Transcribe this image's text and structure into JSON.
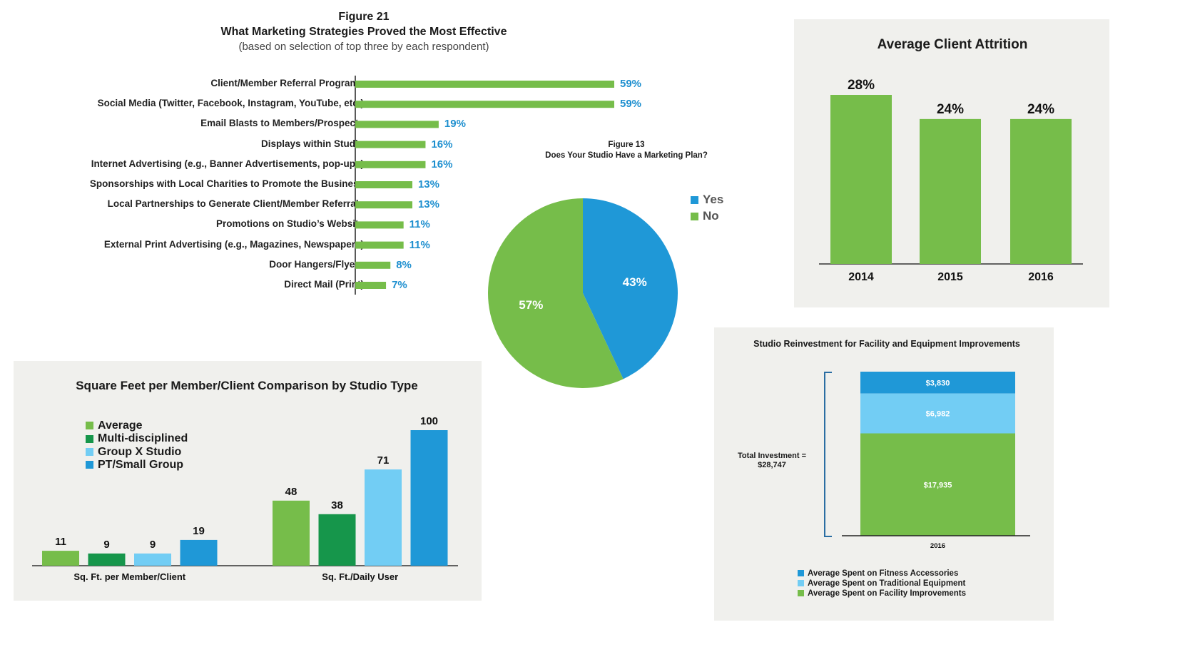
{
  "colors": {
    "green": "#76bd4a",
    "dark_green": "#16964b",
    "light_blue": "#72cdf4",
    "blue": "#1f98d7",
    "pct_blue": "#1e8fcf",
    "panel_bg": "#f0f0ed"
  },
  "chart_data": [
    {
      "type": "bar",
      "orientation": "horizontal",
      "figure_label": "Figure 21",
      "title": "What Marketing Strategies Proved the Most Effective",
      "subtitle": "(based on selection of top three by each respondent)",
      "categories": [
        "Client/Member Referral Programs",
        "Social Media (Twitter, Facebook, Instagram, YouTube, etc.)",
        "Email Blasts to Members/Prospects",
        "Displays within Studio",
        "Internet Advertising (e.g., Banner Advertisements, pop-ups)",
        "Sponsorships with Local Charities to Promote the Business",
        "Local Partnerships to Generate Client/Member Referrals",
        "Promotions on Studio’s Website",
        "External Print Advertising (e.g., Magazines, Newspapers)",
        "Door Hangers/Flyers",
        "Direct Mail (Print)"
      ],
      "values": [
        59,
        59,
        19,
        16,
        16,
        13,
        13,
        11,
        11,
        8,
        7
      ],
      "value_labels": [
        "59%",
        "59%",
        "19%",
        "16%",
        "16%",
        "13%",
        "13%",
        "11%",
        "11%",
        "8%",
        "7%"
      ]
    },
    {
      "type": "pie",
      "figure_label": "Figure 13",
      "title": "Does Your Studio Have a Marketing Plan?",
      "slices": [
        {
          "name": "Yes",
          "value": 43,
          "label": "43%"
        },
        {
          "name": "No",
          "value": 57,
          "label": "57%"
        }
      ],
      "legend_position": "right"
    },
    {
      "type": "bar",
      "title": "Average Client Attrition",
      "categories": [
        "2014",
        "2015",
        "2016"
      ],
      "values": [
        28,
        24,
        24
      ],
      "value_labels": [
        "28%",
        "24%",
        "24%"
      ],
      "ylim": [
        0,
        30
      ]
    },
    {
      "type": "bar",
      "title": "Square Feet per Member/Client Comparison by Studio Type",
      "categories": [
        "Sq. Ft. per Member/Client",
        "Sq. Ft./Daily User"
      ],
      "series": [
        {
          "name": "Average",
          "values": [
            11,
            48
          ],
          "value_labels": [
            "11",
            "48"
          ]
        },
        {
          "name": "Multi-disciplined",
          "values": [
            9,
            38
          ],
          "value_labels": [
            "9",
            "38"
          ]
        },
        {
          "name": "Group X Studio",
          "values": [
            9,
            71
          ],
          "value_labels": [
            "9",
            "71"
          ]
        },
        {
          "name": "PT/Small Group",
          "values": [
            19,
            100
          ],
          "value_labels": [
            "19",
            "100"
          ]
        }
      ],
      "legend_position": "top-left"
    },
    {
      "type": "bar",
      "stacked": true,
      "title": "Studio Reinvestment for Facility and Equipment Improvements",
      "categories": [
        "2016"
      ],
      "total_label": "Total Investment =",
      "total_value": "$28,747",
      "series": [
        {
          "name": "Average Spent on Fitness Accessories",
          "values": [
            3830
          ],
          "value_label": "$3,830"
        },
        {
          "name": "Average Spent on Traditional Equipment",
          "values": [
            6982
          ],
          "value_label": "$6,982"
        },
        {
          "name": "Average Spent on Facility Improvements",
          "values": [
            17935
          ],
          "value_label": "$17,935"
        }
      ],
      "legend_position": "bottom"
    }
  ]
}
